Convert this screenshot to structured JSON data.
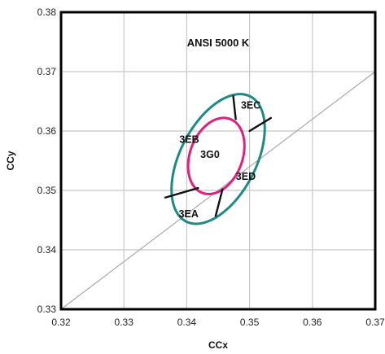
{
  "chart_data": {
    "type": "scatter",
    "annotation": "ANSI 5000 K",
    "xlabel": "CCx",
    "ylabel": "CCy",
    "xlim": [
      0.32,
      0.37
    ],
    "ylim": [
      0.33,
      0.38
    ],
    "xticks": [
      "0.32",
      "0.33",
      "0.34",
      "0.35",
      "0.36",
      "0.37"
    ],
    "yticks": [
      "0.33",
      "0.34",
      "0.35",
      "0.36",
      "0.37",
      "0.38"
    ],
    "grid": true,
    "reference_line": {
      "x": [
        0.32,
        0.37
      ],
      "y": [
        0.33,
        0.37
      ],
      "color": "#aaaaaa"
    },
    "outer_ellipse": {
      "center": [
        0.345,
        0.3553
      ],
      "semi_axes": [
        0.0061,
        0.0117
      ],
      "rotation_deg": 25,
      "color": "#1e8a84"
    },
    "inner_ellipse": {
      "center": [
        0.3447,
        0.3558
      ],
      "semi_axes": [
        0.0042,
        0.0066
      ],
      "rotation_deg": 18,
      "color": "#e0207e"
    },
    "dividers": [
      {
        "x": [
          0.3478,
          0.3474
        ],
        "y": [
          0.362,
          0.3659
        ]
      },
      {
        "x": [
          0.35,
          0.3534
        ],
        "y": [
          0.36,
          0.3622
        ]
      },
      {
        "x": [
          0.3418,
          0.3366
        ],
        "y": [
          0.3504,
          0.3488
        ]
      },
      {
        "x": [
          0.3457,
          0.3446
        ],
        "y": [
          0.3502,
          0.3457
        ]
      }
    ],
    "region_labels": [
      {
        "text": "3EC",
        "x": 0.3502,
        "y": 0.3638
      },
      {
        "text": "3EB",
        "x": 0.3404,
        "y": 0.358
      },
      {
        "text": "3G0",
        "x": 0.3437,
        "y": 0.3555
      },
      {
        "text": "3ED",
        "x": 0.3494,
        "y": 0.3518
      },
      {
        "text": "3EA",
        "x": 0.3403,
        "y": 0.3455
      }
    ]
  }
}
